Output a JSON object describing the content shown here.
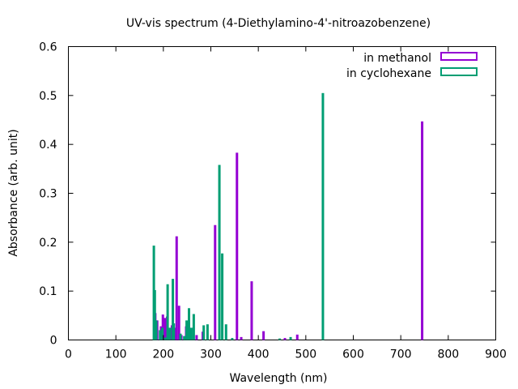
{
  "chart_data": {
    "type": "bar",
    "title": "UV-vis spectrum (4-Diethylamino-4'-nitroazobenzene)",
    "xlabel": "Wavelength (nm)",
    "ylabel": "Absorbance (arb. unit)",
    "xlim": [
      0,
      900
    ],
    "ylim": [
      0,
      0.6
    ],
    "xticks": [
      "0",
      "100",
      "200",
      "300",
      "400",
      "500",
      "600",
      "700",
      "800",
      "900"
    ],
    "yticks": [
      "0",
      "0.1",
      "0.2",
      "0.3",
      "0.4",
      "0.5",
      "0.6"
    ],
    "grid": false,
    "legend_position": "top-right",
    "series": [
      {
        "name": "in methanol",
        "color": "#9400d3",
        "points": [
          {
            "x": 183,
            "y": 0.055
          },
          {
            "x": 187,
            "y": 0.04
          },
          {
            "x": 195,
            "y": 0.028
          },
          {
            "x": 199,
            "y": 0.052
          },
          {
            "x": 203,
            "y": 0.045
          },
          {
            "x": 208,
            "y": 0.048
          },
          {
            "x": 213,
            "y": 0.02
          },
          {
            "x": 218,
            "y": 0.03
          },
          {
            "x": 224,
            "y": 0.025
          },
          {
            "x": 228,
            "y": 0.212
          },
          {
            "x": 233,
            "y": 0.07
          },
          {
            "x": 238,
            "y": 0.01
          },
          {
            "x": 248,
            "y": 0.028
          },
          {
            "x": 258,
            "y": 0.015
          },
          {
            "x": 270,
            "y": 0.01
          },
          {
            "x": 283,
            "y": 0.017
          },
          {
            "x": 309,
            "y": 0.235
          },
          {
            "x": 355,
            "y": 0.383
          },
          {
            "x": 364,
            "y": 0.006
          },
          {
            "x": 386,
            "y": 0.12
          },
          {
            "x": 411,
            "y": 0.018
          },
          {
            "x": 456,
            "y": 0.004
          },
          {
            "x": 482,
            "y": 0.011
          },
          {
            "x": 745,
            "y": 0.447
          }
        ]
      },
      {
        "name": "in cyclohexane",
        "color": "#009e73",
        "points": [
          {
            "x": 180,
            "y": 0.193
          },
          {
            "x": 182,
            "y": 0.102
          },
          {
            "x": 185,
            "y": 0.04
          },
          {
            "x": 193,
            "y": 0.02
          },
          {
            "x": 198,
            "y": 0.025
          },
          {
            "x": 204,
            "y": 0.005
          },
          {
            "x": 209,
            "y": 0.114
          },
          {
            "x": 214,
            "y": 0.025
          },
          {
            "x": 220,
            "y": 0.125
          },
          {
            "x": 222,
            "y": 0.034
          },
          {
            "x": 236,
            "y": 0.013
          },
          {
            "x": 244,
            "y": 0.008
          },
          {
            "x": 249,
            "y": 0.04
          },
          {
            "x": 254,
            "y": 0.065
          },
          {
            "x": 259,
            "y": 0.025
          },
          {
            "x": 264,
            "y": 0.053
          },
          {
            "x": 285,
            "y": 0.03
          },
          {
            "x": 293,
            "y": 0.032
          },
          {
            "x": 318,
            "y": 0.358
          },
          {
            "x": 324,
            "y": 0.177
          },
          {
            "x": 332,
            "y": 0.032
          },
          {
            "x": 345,
            "y": 0.004
          },
          {
            "x": 445,
            "y": 0.003
          },
          {
            "x": 468,
            "y": 0.006
          },
          {
            "x": 536,
            "y": 0.505
          }
        ]
      }
    ]
  }
}
